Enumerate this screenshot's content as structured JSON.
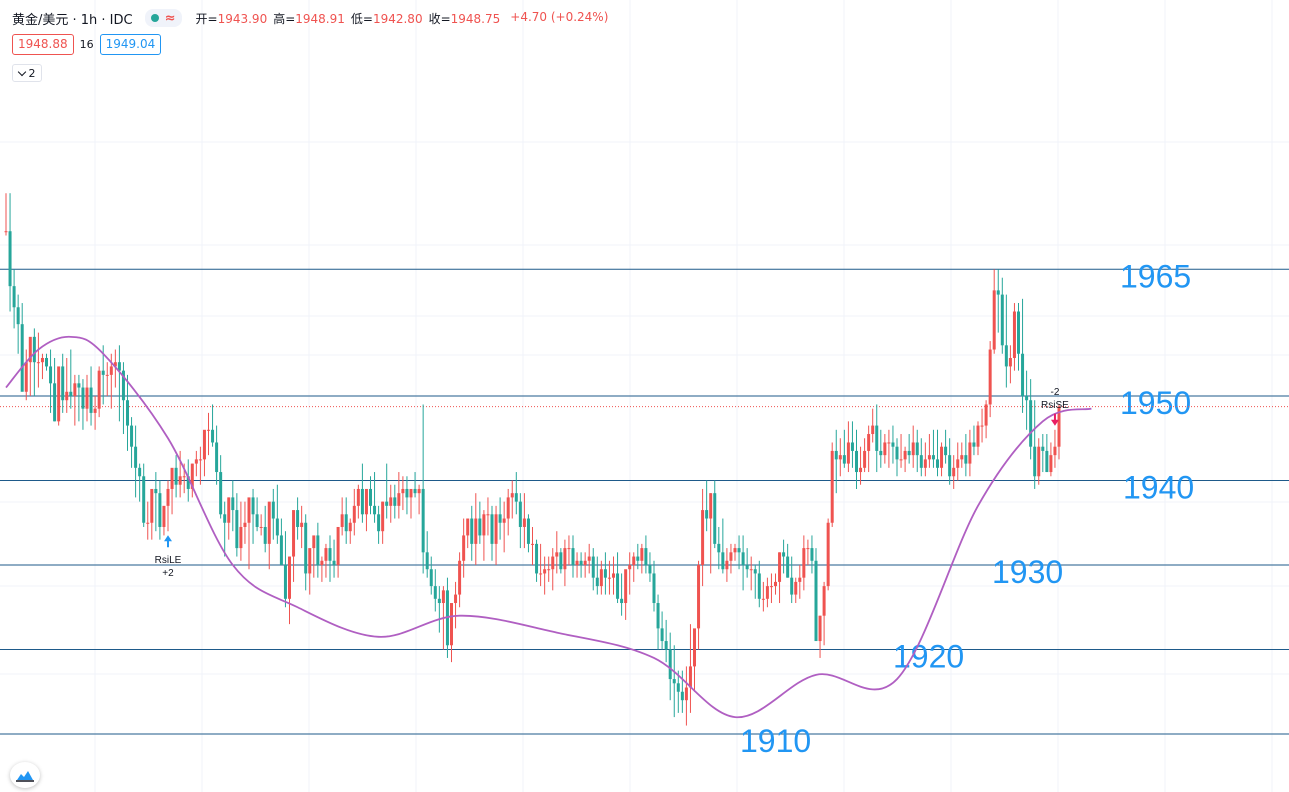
{
  "header": {
    "symbol": "黄金/美元 · 1h · IDC",
    "status_icon": "≈",
    "ohlc": {
      "open_label": "开=",
      "open": "1943.90",
      "high_label": "高=",
      "high": "1948.91",
      "low_label": "低=",
      "low": "1942.80",
      "close_label": "收=",
      "close": "1948.75",
      "change": "+4.70 (+0.24%)"
    }
  },
  "quote": {
    "bid": "1948.88",
    "spread": "16",
    "ask": "1949.04"
  },
  "indicator_toggle": {
    "label": "2"
  },
  "colors": {
    "up": "#ef5350",
    "down": "#26a69a",
    "ma": "#b05fc2",
    "level": "#1e5a8a",
    "level_text": "#2196f3",
    "current_price": "#ef5350"
  },
  "chart_data": {
    "type": "candlestick",
    "instrument": "黄金/美元",
    "interval": "1h",
    "ylim": [
      1906,
      1975
    ],
    "current_price": 1948.75,
    "levels": [
      {
        "value": 1965,
        "label": "1965"
      },
      {
        "value": 1950,
        "label": "1950"
      },
      {
        "value": 1940,
        "label": "1940"
      },
      {
        "value": 1930,
        "label": "1930"
      },
      {
        "value": 1920,
        "label": "1920"
      },
      {
        "value": 1910,
        "label": "1910"
      }
    ],
    "signals": [
      {
        "name": "RsiLE",
        "qty": "+2",
        "direction": "buy",
        "bar": 40
      },
      {
        "name": "RsiSE",
        "qty": "-2",
        "direction": "sell",
        "bar": 259
      }
    ],
    "ma_path": [
      [
        0,
        1951
      ],
      [
        8,
        1955.5
      ],
      [
        16,
        1957
      ],
      [
        24,
        1955
      ],
      [
        40,
        1945
      ],
      [
        56,
        1930
      ],
      [
        72,
        1925
      ],
      [
        92,
        1921.5
      ],
      [
        112,
        1924
      ],
      [
        136,
        1922
      ],
      [
        160,
        1919
      ],
      [
        180,
        1912
      ],
      [
        200,
        1917
      ],
      [
        220,
        1916.5
      ],
      [
        240,
        1937
      ],
      [
        256,
        1947
      ],
      [
        268,
        1948.5
      ]
    ],
    "candles": {
      "open": [
        1969.5,
        1969.5,
        1963.0,
        1960.5,
        1958.5,
        1950.5,
        1954.0,
        1957.0,
        1954.0,
        1954.0,
        1954.5,
        1953.5,
        1951.5,
        1947.0,
        1953.5,
        1949.5,
        1950.5,
        1950.0,
        1951.5,
        1951.0,
        1948.5,
        1951.0,
        1948.0,
        1948.5,
        1953.0,
        1952.5,
        1952.5,
        1953.5,
        1954.0,
        1953.0,
        1949.5,
        1946.5,
        1944.0,
        1941.5,
        1940.5,
        1935.0,
        1935.0,
        1939.0,
        1938.5,
        1934.5,
        1937.0,
        1939.0,
        1941.5,
        1939.5,
        1940.5,
        1940.5,
        1939.0,
        1942.0,
        1942.5,
        1942.5,
        1946.0,
        1946.0,
        1944.5,
        1941.0,
        1936.0,
        1935.0,
        1938.0,
        1936.5,
        1932.0,
        1934.5,
        1935.0,
        1938.0,
        1936.0,
        1934.5,
        1934.5,
        1932.5,
        1937.5,
        1935.5,
        1933.5,
        1930.0,
        1926.0,
        1931.0,
        1936.5,
        1934.5,
        1935.0,
        1929.0,
        1932.0,
        1933.5,
        1930.0,
        1930.5,
        1932.0,
        1930.5,
        1930.0,
        1934.5,
        1936.0,
        1934.0,
        1935.0,
        1937.0,
        1939.0,
        1936.0,
        1939.0,
        1937.0,
        1936.0,
        1934.0,
        1937.5,
        1937.0,
        1938.0,
        1937.0,
        1938.5,
        1939.0,
        1938.0,
        1939.0,
        1938.5,
        1939.0,
        1931.5,
        1929.5,
        1927.5,
        1926.0,
        1925.5,
        1927.0,
        1920.5,
        1925.5,
        1926.5,
        1930.5,
        1933.5,
        1935.5,
        1932.5,
        1935.5,
        1933.5,
        1936.0,
        1936.0,
        1932.5,
        1936.0,
        1935.0,
        1935.5,
        1938.0,
        1938.5,
        1937.5,
        1934.5,
        1935.5,
        1932.5,
        1932.5,
        1929.0,
        1929.0,
        1929.5,
        1929.5,
        1931.0,
        1931.5,
        1929.5,
        1932.0,
        1932.0,
        1930.0,
        1930.5,
        1930.0,
        1930.5,
        1931.0,
        1928.5,
        1927.5,
        1929.5,
        1928.5,
        1928.5,
        1929.0,
        1926.0,
        1925.5,
        1929.5,
        1930.0,
        1931.0,
        1930.5,
        1932.0,
        1930.0,
        1929.0,
        1925.5,
        1922.5,
        1921.0,
        1920.0,
        1916.5,
        1916.0,
        1915.0,
        1914.0,
        1915.5,
        1918.0,
        1922.5,
        1930.0,
        1936.5,
        1935.5,
        1938.5,
        1932.5,
        1931.5,
        1929.5,
        1930.5,
        1931.5,
        1932.0,
        1931.5,
        1930.0,
        1929.5,
        1929.5,
        1929.0,
        1926.0,
        1926.0,
        1927.5,
        1927.5,
        1928.0,
        1931.5,
        1931.0,
        1928.5,
        1926.5,
        1928.0,
        1928.5,
        1932.0,
        1932.0,
        1930.5,
        1921.0,
        1924.0,
        1927.5,
        1935.0,
        1943.5,
        1942.5,
        1943.0,
        1942.0,
        1944.5,
        1943.5,
        1941.0,
        1941.5,
        1943.5,
        1945.5,
        1946.5,
        1943.5,
        1943.0,
        1944.5,
        1944.5,
        1944.0,
        1942.5,
        1942.5,
        1943.5,
        1943.0,
        1944.5,
        1943.0,
        1941.5,
        1942.5,
        1943.0,
        1942.5,
        1941.5,
        1944.0,
        1943.0,
        1940.5,
        1941.5,
        1942.5,
        1943.0,
        1942.0,
        1944.5,
        1944.0,
        1946.5,
        1946.5,
        1949.0,
        1955.5,
        1962.5,
        1962.0,
        1956.0,
        1953.5,
        1954.5,
        1960.0,
        1955.0,
        1950.0,
        1949.5,
        1944.0,
        1940.5,
        1944.0,
        1943.5,
        1941.0,
        1943.0,
        1944.0
      ],
      "high": [
        1974.0,
        1974.0,
        1965.0,
        1962.0,
        1961.0,
        1955.5,
        1956.0,
        1958.0,
        1957.5,
        1955.0,
        1955.0,
        1955.5,
        1954.5,
        1948.0,
        1955.0,
        1954.5,
        1955.5,
        1952.5,
        1952.5,
        1952.0,
        1952.5,
        1953.5,
        1950.0,
        1953.5,
        1956.0,
        1954.0,
        1955.0,
        1955.5,
        1956.0,
        1954.0,
        1952.5,
        1947.5,
        1946.5,
        1942.0,
        1942.0,
        1937.5,
        1936.0,
        1941.0,
        1940.0,
        1936.5,
        1940.0,
        1941.0,
        1943.0,
        1943.5,
        1942.0,
        1942.5,
        1942.0,
        1943.5,
        1944.0,
        1944.5,
        1948.0,
        1949.0,
        1946.5,
        1943.0,
        1937.5,
        1938.0,
        1940.0,
        1938.5,
        1937.5,
        1937.5,
        1936.0,
        1939.0,
        1938.0,
        1936.0,
        1937.0,
        1935.0,
        1939.0,
        1939.5,
        1935.5,
        1934.0,
        1931.0,
        1934.0,
        1938.0,
        1937.0,
        1936.0,
        1931.0,
        1933.0,
        1935.0,
        1931.0,
        1932.5,
        1933.5,
        1933.0,
        1933.0,
        1938.0,
        1938.0,
        1935.5,
        1939.0,
        1939.5,
        1942.0,
        1938.0,
        1940.5,
        1941.0,
        1937.0,
        1937.5,
        1942.0,
        1939.5,
        1939.5,
        1941.0,
        1940.5,
        1940.5,
        1939.0,
        1941.0,
        1939.5,
        1949.0,
        1934.0,
        1931.0,
        1929.5,
        1927.5,
        1927.5,
        1928.5,
        1924.0,
        1928.0,
        1931.5,
        1935.5,
        1935.5,
        1937.0,
        1938.5,
        1937.5,
        1936.5,
        1938.0,
        1937.0,
        1937.0,
        1938.0,
        1937.5,
        1939.0,
        1940.0,
        1941.0,
        1938.5,
        1938.5,
        1936.0,
        1934.5,
        1933.0,
        1932.5,
        1931.0,
        1931.0,
        1932.0,
        1934.0,
        1932.0,
        1933.0,
        1933.5,
        1933.5,
        1931.5,
        1931.5,
        1931.5,
        1932.5,
        1932.0,
        1931.0,
        1930.5,
        1931.5,
        1930.5,
        1931.0,
        1931.5,
        1929.0,
        1928.5,
        1931.5,
        1931.5,
        1932.5,
        1932.5,
        1933.5,
        1931.5,
        1930.5,
        1926.5,
        1924.5,
        1923.5,
        1922.0,
        1920.5,
        1917.5,
        1917.5,
        1918.0,
        1923.0,
        1921.5,
        1930.5,
        1939.0,
        1940.0,
        1938.5,
        1940.0,
        1934.5,
        1935.5,
        1932.0,
        1932.5,
        1932.5,
        1933.5,
        1933.5,
        1932.0,
        1931.0,
        1930.0,
        1930.5,
        1928.0,
        1928.5,
        1929.0,
        1929.0,
        1931.5,
        1933.0,
        1932.5,
        1931.0,
        1928.5,
        1930.0,
        1933.5,
        1933.0,
        1933.5,
        1932.0,
        1924.0,
        1928.0,
        1935.5,
        1944.5,
        1946.0,
        1945.0,
        1946.0,
        1947.0,
        1947.0,
        1946.0,
        1944.0,
        1945.0,
        1946.5,
        1948.5,
        1949.0,
        1946.0,
        1945.5,
        1946.0,
        1946.5,
        1945.0,
        1945.5,
        1944.0,
        1945.5,
        1946.5,
        1946.0,
        1945.0,
        1944.5,
        1945.5,
        1946.0,
        1946.0,
        1944.5,
        1946.0,
        1945.0,
        1943.0,
        1944.5,
        1944.5,
        1945.5,
        1946.0,
        1946.5,
        1947.0,
        1948.5,
        1949.5,
        1956.5,
        1965.0,
        1965.0,
        1964.0,
        1962.0,
        1956.0,
        1961.0,
        1961.0,
        1961.5,
        1953.0,
        1952.0,
        1949.5,
        1945.0,
        1945.5,
        1945.5,
        1944.5,
        1946.0,
        1949.0
      ],
      "low": [
        1969.0,
        1960.0,
        1958.0,
        1955.0,
        1952.0,
        1949.5,
        1950.0,
        1950.0,
        1951.0,
        1952.0,
        1953.0,
        1948.0,
        1947.0,
        1946.5,
        1948.0,
        1948.0,
        1948.5,
        1946.5,
        1947.0,
        1946.0,
        1947.0,
        1946.5,
        1946.0,
        1947.5,
        1949.0,
        1950.0,
        1948.5,
        1951.0,
        1947.0,
        1945.5,
        1943.5,
        1941.5,
        1938.0,
        1937.5,
        1934.5,
        1933.0,
        1933.0,
        1934.0,
        1933.0,
        1933.5,
        1934.0,
        1936.0,
        1938.0,
        1938.0,
        1938.5,
        1937.5,
        1938.0,
        1940.5,
        1939.5,
        1940.5,
        1943.0,
        1944.0,
        1939.5,
        1935.5,
        1931.0,
        1933.0,
        1934.0,
        1931.0,
        1930.5,
        1932.5,
        1929.5,
        1932.5,
        1934.0,
        1933.5,
        1931.5,
        1929.5,
        1933.0,
        1932.5,
        1930.0,
        1925.0,
        1923.0,
        1928.0,
        1933.0,
        1932.0,
        1927.0,
        1926.5,
        1928.5,
        1928.5,
        1928.0,
        1928.5,
        1928.0,
        1928.5,
        1928.5,
        1933.5,
        1932.5,
        1932.5,
        1933.5,
        1935.5,
        1935.0,
        1934.0,
        1936.0,
        1935.0,
        1932.5,
        1932.5,
        1935.5,
        1935.0,
        1935.5,
        1935.5,
        1936.5,
        1936.0,
        1935.5,
        1938.0,
        1936.0,
        1929.0,
        1928.5,
        1926.5,
        1924.5,
        1922.0,
        1920.0,
        1919.0,
        1918.5,
        1922.5,
        1925.0,
        1928.5,
        1932.0,
        1930.5,
        1930.0,
        1932.5,
        1930.5,
        1933.5,
        1930.5,
        1930.0,
        1933.0,
        1931.5,
        1933.5,
        1935.5,
        1936.0,
        1932.0,
        1932.0,
        1931.5,
        1930.0,
        1928.0,
        1927.5,
        1926.5,
        1928.0,
        1927.0,
        1929.0,
        1929.0,
        1927.5,
        1930.0,
        1928.5,
        1928.5,
        1928.5,
        1928.5,
        1929.0,
        1927.0,
        1926.5,
        1926.5,
        1926.5,
        1926.5,
        1926.5,
        1925.5,
        1924.0,
        1923.5,
        1926.5,
        1928.0,
        1929.5,
        1929.0,
        1929.0,
        1928.0,
        1924.5,
        1920.0,
        1920.0,
        1918.5,
        1914.0,
        1912.0,
        1912.5,
        1912.5,
        1911.0,
        1912.5,
        1915.0,
        1920.0,
        1927.5,
        1934.0,
        1929.0,
        1932.0,
        1929.5,
        1929.0,
        1928.0,
        1929.0,
        1930.5,
        1929.5,
        1927.0,
        1928.5,
        1927.0,
        1926.0,
        1925.0,
        1924.5,
        1925.0,
        1925.5,
        1926.5,
        1925.5,
        1929.0,
        1928.5,
        1925.5,
        1925.5,
        1926.0,
        1927.0,
        1930.0,
        1929.0,
        1921.0,
        1919.0,
        1920.5,
        1927.0,
        1934.5,
        1938.5,
        1940.5,
        1941.5,
        1941.0,
        1941.5,
        1939.0,
        1939.5,
        1941.0,
        1941.0,
        1944.5,
        1941.0,
        1941.5,
        1942.0,
        1941.5,
        1942.0,
        1940.5,
        1941.5,
        1941.0,
        1942.0,
        1941.5,
        1941.0,
        1940.5,
        1940.5,
        1941.5,
        1941.5,
        1940.5,
        1940.5,
        1942.0,
        1939.5,
        1939.0,
        1940.0,
        1941.5,
        1940.5,
        1940.5,
        1943.0,
        1943.0,
        1944.5,
        1945.0,
        1947.5,
        1955.0,
        1957.5,
        1955.0,
        1951.0,
        1951.5,
        1953.0,
        1953.0,
        1948.0,
        1946.0,
        1942.5,
        1939.0,
        1939.5,
        1941.0,
        1941.0,
        1940.5,
        1941.5,
        1942.5
      ],
      "close": [
        1969.5,
        1963.0,
        1960.5,
        1958.5,
        1950.5,
        1954.0,
        1957.0,
        1954.0,
        1954.0,
        1954.5,
        1953.5,
        1951.5,
        1947.0,
        1953.5,
        1949.5,
        1950.5,
        1950.0,
        1951.5,
        1951.0,
        1948.5,
        1951.0,
        1948.0,
        1948.5,
        1953.0,
        1952.5,
        1952.5,
        1953.5,
        1954.0,
        1953.0,
        1949.5,
        1946.5,
        1944.0,
        1941.5,
        1940.5,
        1935.0,
        1935.0,
        1939.0,
        1938.5,
        1934.5,
        1937.0,
        1939.0,
        1941.5,
        1939.5,
        1940.5,
        1940.5,
        1939.0,
        1942.0,
        1942.5,
        1942.5,
        1946.0,
        1946.0,
        1944.5,
        1941.0,
        1936.0,
        1935.0,
        1938.0,
        1936.5,
        1932.0,
        1934.5,
        1935.0,
        1938.0,
        1936.0,
        1934.5,
        1934.5,
        1932.5,
        1937.5,
        1935.5,
        1933.5,
        1930.0,
        1926.0,
        1931.0,
        1936.5,
        1934.5,
        1935.0,
        1929.0,
        1932.0,
        1933.5,
        1930.0,
        1930.5,
        1932.0,
        1930.5,
        1930.0,
        1934.5,
        1936.0,
        1934.0,
        1935.0,
        1937.0,
        1939.0,
        1936.0,
        1939.0,
        1937.0,
        1936.0,
        1934.0,
        1937.5,
        1937.0,
        1938.0,
        1937.0,
        1938.5,
        1939.0,
        1938.0,
        1939.0,
        1938.5,
        1939.0,
        1931.5,
        1929.5,
        1927.5,
        1926.0,
        1925.5,
        1927.0,
        1920.5,
        1925.5,
        1926.5,
        1930.5,
        1933.5,
        1935.5,
        1932.5,
        1935.5,
        1933.5,
        1936.0,
        1936.0,
        1932.5,
        1936.0,
        1935.0,
        1935.5,
        1938.0,
        1938.5,
        1937.5,
        1934.5,
        1935.5,
        1932.5,
        1932.5,
        1929.0,
        1929.0,
        1929.5,
        1929.5,
        1931.0,
        1931.5,
        1929.5,
        1932.0,
        1932.0,
        1930.0,
        1930.5,
        1930.0,
        1930.5,
        1931.0,
        1928.5,
        1927.5,
        1929.5,
        1928.5,
        1928.5,
        1929.0,
        1926.0,
        1925.5,
        1929.5,
        1930.0,
        1931.0,
        1930.5,
        1932.0,
        1930.0,
        1929.0,
        1925.5,
        1922.5,
        1921.0,
        1920.0,
        1916.5,
        1916.0,
        1915.0,
        1914.0,
        1915.5,
        1918.0,
        1922.5,
        1930.0,
        1936.5,
        1935.5,
        1938.5,
        1932.5,
        1931.5,
        1929.5,
        1930.5,
        1931.5,
        1932.0,
        1931.5,
        1930.0,
        1929.5,
        1929.5,
        1929.0,
        1926.0,
        1926.0,
        1927.5,
        1927.5,
        1928.0,
        1931.5,
        1931.0,
        1928.5,
        1926.5,
        1928.0,
        1928.5,
        1932.0,
        1932.0,
        1930.5,
        1921.0,
        1924.0,
        1927.5,
        1935.0,
        1943.5,
        1942.5,
        1943.0,
        1942.0,
        1944.5,
        1943.5,
        1941.0,
        1941.5,
        1943.5,
        1945.5,
        1946.5,
        1943.5,
        1943.0,
        1944.5,
        1944.5,
        1944.0,
        1942.5,
        1942.5,
        1943.5,
        1943.0,
        1944.5,
        1943.0,
        1941.5,
        1942.5,
        1943.0,
        1942.5,
        1941.5,
        1944.0,
        1943.0,
        1940.5,
        1941.5,
        1942.5,
        1943.0,
        1942.0,
        1944.5,
        1944.0,
        1946.5,
        1946.5,
        1949.0,
        1955.5,
        1962.5,
        1962.0,
        1956.0,
        1953.5,
        1954.5,
        1960.0,
        1955.0,
        1950.0,
        1949.5,
        1944.0,
        1940.5,
        1944.0,
        1943.5,
        1941.0,
        1943.0,
        1944.0,
        1948.75
      ]
    }
  }
}
